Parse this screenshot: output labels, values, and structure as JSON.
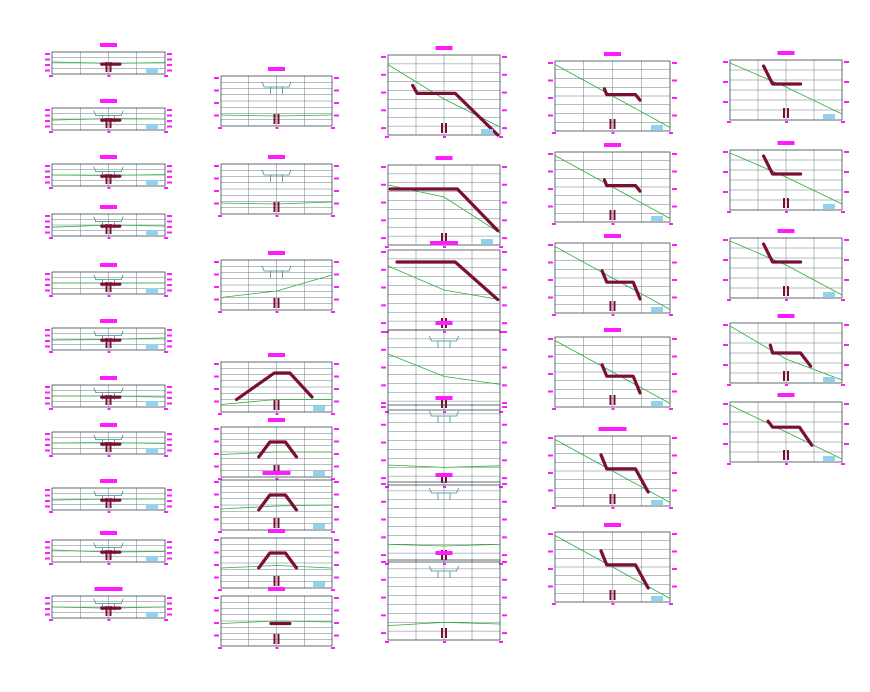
{
  "colors": {
    "background": "#ffffff",
    "frame": "#3a4750",
    "grid": "#6f7c86",
    "label": "#ff1aff",
    "ground": "#2fae3d",
    "profile": "#7b0e34",
    "water": "#8fd3ef",
    "structure": "#3b8f90",
    "marker": "#7b0e34"
  },
  "columns": [
    {
      "id": "col-1",
      "panels": [
        {
          "shape": "flat",
          "ground": [
            0.45,
            0.52,
            0.48
          ],
          "water": true
        },
        {
          "shape": "flat",
          "ground": [
            0.55,
            0.48,
            0.5
          ],
          "water": true,
          "pipe": true
        },
        {
          "shape": "flat",
          "ground": [
            0.5,
            0.52,
            0.48
          ],
          "water": true,
          "pipe": true
        },
        {
          "shape": "flat",
          "ground": [
            0.6,
            0.5,
            0.55
          ],
          "water": true,
          "pipe": true
        },
        {
          "shape": "flat",
          "ground": [
            0.5,
            0.5,
            0.5
          ],
          "water": true,
          "pipe": true
        },
        {
          "shape": "flat",
          "ground": [
            0.55,
            0.52,
            0.45
          ],
          "water": true,
          "pipe": true
        },
        {
          "shape": "flat",
          "ground": [
            0.5,
            0.5,
            0.55
          ],
          "water": true,
          "pipe": true
        },
        {
          "shape": "flat",
          "ground": [
            0.5,
            0.48,
            0.52
          ],
          "water": true,
          "pipe": true
        },
        {
          "shape": "flat",
          "ground": [
            0.55,
            0.5,
            0.5
          ],
          "water": true,
          "pipe": true
        },
        {
          "shape": "flat",
          "ground": [
            0.45,
            0.55,
            0.52
          ],
          "water": true,
          "pipe": true
        },
        {
          "shape": "flat",
          "ground": [
            0.5,
            0.55,
            0.5
          ],
          "water": true,
          "pipe": true,
          "wideLabel": true
        }
      ]
    },
    {
      "id": "col-2",
      "panels": [
        {
          "shape": "none",
          "ground": [
            0.78,
            0.8,
            0.78
          ],
          "water": false,
          "pipe": true
        },
        {
          "shape": "none",
          "ground": [
            0.78,
            0.8,
            0.76
          ],
          "water": false,
          "pipe": true
        },
        {
          "shape": "none",
          "ground": [
            0.75,
            0.62,
            0.3
          ],
          "water": false,
          "pipe": true
        },
        {
          "shape": "bump",
          "ground": [
            0.85,
            0.75,
            0.75
          ],
          "water": true
        },
        {
          "shape": "bump-small",
          "ground": [
            0.55,
            0.5,
            0.5
          ],
          "water": true
        },
        {
          "shape": "bump-small",
          "ground": [
            0.58,
            0.52,
            0.5
          ],
          "water": true,
          "wideLabel": true
        },
        {
          "shape": "bump-small",
          "ground": [
            0.6,
            0.55,
            0.6
          ],
          "water": true
        },
        {
          "shape": "flat-wide",
          "ground": [
            0.55,
            0.5,
            0.52
          ],
          "water": false
        }
      ]
    },
    {
      "id": "col-3",
      "panels": [
        {
          "shape": "steep-a",
          "ground": [
            0.12,
            0.55,
            0.9
          ],
          "water": true
        },
        {
          "shape": "steep-b",
          "ground": [
            0.25,
            0.4,
            0.85
          ],
          "water": true
        },
        {
          "shape": "steep-c",
          "ground": [
            0.2,
            0.5,
            0.62
          ],
          "water": false,
          "wideLabel": true
        },
        {
          "shape": "none",
          "ground": [
            0.3,
            0.58,
            0.68
          ],
          "water": false,
          "pipe": true
        },
        {
          "shape": "none",
          "ground": [
            0.75,
            0.78,
            0.76
          ],
          "water": false,
          "pipe": true
        },
        {
          "shape": "none",
          "ground": [
            0.78,
            0.8,
            0.78
          ],
          "water": false,
          "pipe": true
        },
        {
          "shape": "none",
          "ground": [
            0.82,
            0.78,
            0.8
          ],
          "water": false,
          "pipe": true
        }
      ]
    },
    {
      "id": "col-4",
      "panels": [
        {
          "shape": "step-a",
          "ground": [
            0.05,
            0.5,
            0.95
          ],
          "water": true
        },
        {
          "shape": "step-a",
          "ground": [
            0.05,
            0.5,
            0.95
          ],
          "water": true
        },
        {
          "shape": "step-b",
          "ground": [
            0.05,
            0.5,
            0.95
          ],
          "water": true
        },
        {
          "shape": "step-b",
          "ground": [
            0.05,
            0.5,
            0.95
          ],
          "water": true
        },
        {
          "shape": "step-c",
          "ground": [
            0.05,
            0.5,
            0.95
          ],
          "water": true,
          "wideLabel": true
        },
        {
          "shape": "step-c",
          "ground": [
            0.05,
            0.5,
            0.95
          ],
          "water": true
        }
      ]
    },
    {
      "id": "col-5",
      "panels": [
        {
          "shape": "hook",
          "ground": [
            0.05,
            0.45,
            0.9
          ],
          "water": true
        },
        {
          "shape": "hook",
          "ground": [
            0.05,
            0.45,
            0.9
          ],
          "water": true
        },
        {
          "shape": "hook",
          "ground": [
            0.05,
            0.45,
            0.95
          ],
          "water": true
        },
        {
          "shape": "step-d",
          "ground": [
            0.05,
            0.6,
            0.95
          ],
          "water": true
        },
        {
          "shape": "step-e",
          "ground": [
            0.05,
            0.5,
            0.95
          ],
          "water": true
        }
      ]
    }
  ]
}
